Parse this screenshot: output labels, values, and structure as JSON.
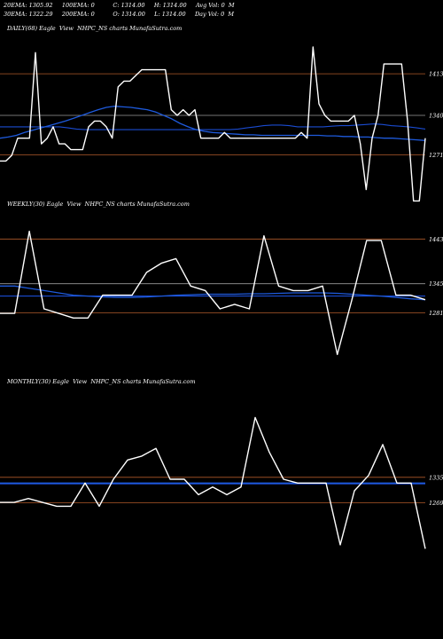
{
  "header": {
    "line1": "20EMA: 1305.92     100EMA: 0          C: 1314.00     H: 1314.00     Avg Vol: 0  M",
    "line2": "30EMA: 1322.29     200EMA: 0          O: 1314.00     L: 1314.00     Day Vol: 0  M"
  },
  "colors": {
    "price": "#ffffff",
    "ema": "#1e5adc",
    "ema_alt": "#1a4bd0",
    "ref": "#b05a2a",
    "gray": "#9a9a9a",
    "pink": "#c87a8a"
  },
  "chart_data": [
    {
      "type": "line",
      "title": "DAILY(68) Eagle  View  NHPC_NS charts MunafaSutra.com",
      "yrange": [
        1200,
        1480
      ],
      "hlines": [
        1413,
        1340,
        1271
      ],
      "tick_labels": [
        "1413",
        "1340",
        "1271"
      ],
      "series": [
        {
          "values": [
            1260,
            1260,
            1270,
            1300,
            1300,
            1300,
            1450,
            1290,
            1300,
            1320,
            1290,
            1290,
            1280,
            1280,
            1280,
            1320,
            1330,
            1330,
            1320,
            1300,
            1390,
            1400,
            1400,
            1410,
            1420,
            1420,
            1420,
            1420,
            1420,
            1350,
            1340,
            1350,
            1340,
            1350,
            1300,
            1300,
            1300,
            1300,
            1310,
            1300,
            1300,
            1300,
            1300,
            1300,
            1300,
            1300,
            1300,
            1300,
            1300,
            1300,
            1300,
            1310,
            1300,
            1460,
            1360,
            1340,
            1330,
            1330,
            1330,
            1330,
            1340,
            1290,
            1210,
            1300,
            1340,
            1430,
            1430,
            1430,
            1430,
            1330,
            1190,
            1190,
            1300
          ]
        },
        {
          "values": [
            1300,
            1302,
            1305,
            1310,
            1314,
            1318,
            1322,
            1326,
            1330,
            1335,
            1340,
            1345,
            1350,
            1354,
            1356,
            1355,
            1354,
            1352,
            1350,
            1346,
            1340,
            1334,
            1326,
            1320,
            1315,
            1312,
            1310,
            1309,
            1308,
            1307,
            1306,
            1306,
            1305,
            1305,
            1305,
            1305,
            1305,
            1305,
            1305,
            1305,
            1304,
            1304,
            1303,
            1303,
            1302,
            1302,
            1301,
            1300,
            1300,
            1299,
            1298,
            1297,
            1296
          ]
        },
        {
          "values": [
            1320,
            1320,
            1320,
            1320,
            1320,
            1320,
            1320,
            1320,
            1318,
            1316,
            1315,
            1315,
            1315,
            1315,
            1315,
            1315,
            1315,
            1315,
            1315,
            1315,
            1315,
            1315,
            1315,
            1315,
            1315,
            1315,
            1315,
            1315,
            1316,
            1318,
            1320,
            1322,
            1323,
            1323,
            1322,
            1320,
            1320,
            1320,
            1320,
            1321,
            1322,
            1322,
            1323,
            1324,
            1325,
            1324,
            1322,
            1321,
            1320,
            1318,
            1316
          ]
        }
      ]
    },
    {
      "type": "line",
      "title": "WEEKLY(30) Eagle  View  NHPC_NS charts MunafaSutra.com",
      "yrange": [
        1150,
        1500
      ],
      "hlines": [
        1443,
        1345,
        1281
      ],
      "tick_labels": [
        "1443",
        "1345",
        "1281"
      ],
      "series": [
        {
          "values": [
            1280,
            1280,
            1460,
            1290,
            1280,
            1270,
            1270,
            1320,
            1320,
            1320,
            1370,
            1390,
            1400,
            1340,
            1330,
            1290,
            1300,
            1290,
            1450,
            1340,
            1330,
            1330,
            1340,
            1190,
            1310,
            1440,
            1440,
            1320,
            1320,
            1310
          ]
        },
        {
          "values": [
            1340,
            1340,
            1335,
            1330,
            1325,
            1320,
            1318,
            1316,
            1315,
            1315,
            1316,
            1318,
            1320,
            1321,
            1322,
            1322,
            1322,
            1323,
            1323,
            1324,
            1325,
            1325,
            1325,
            1324,
            1322,
            1320,
            1318,
            1315,
            1312,
            1310
          ]
        },
        {
          "values": [
            1318,
            1318,
            1318,
            1318,
            1318,
            1318,
            1318,
            1318,
            1318,
            1318,
            1318,
            1318,
            1318,
            1318,
            1318,
            1318,
            1318,
            1318,
            1318,
            1318,
            1318,
            1318,
            1318,
            1318,
            1318,
            1318,
            1318,
            1318,
            1318,
            1318
          ]
        }
      ]
    },
    {
      "type": "line",
      "title": "MONTHLY(30) Eagle  View  NHPC_NS charts MunafaSutra.com",
      "yrange": [
        1100,
        1560
      ],
      "hlines": [
        1335,
        1269
      ],
      "tick_labels": [
        "1335",
        "1269"
      ],
      "series": [
        {
          "values": [
            1270,
            1270,
            1280,
            1270,
            1260,
            1260,
            1320,
            1260,
            1330,
            1380,
            1390,
            1410,
            1330,
            1330,
            1290,
            1310,
            1290,
            1310,
            1490,
            1400,
            1330,
            1320,
            1320,
            1320,
            1160,
            1300,
            1340,
            1420,
            1320,
            1320,
            1150
          ]
        },
        {
          "values": [
            1320,
            1320,
            1320,
            1320,
            1320,
            1320,
            1320,
            1320,
            1320,
            1320,
            1320,
            1320,
            1320,
            1320,
            1320,
            1320,
            1320,
            1320,
            1320,
            1320,
            1320,
            1320,
            1320,
            1320,
            1320,
            1320,
            1320,
            1320,
            1320,
            1320,
            1320
          ]
        },
        {
          "values": [
            1318,
            1318,
            1318,
            1318,
            1318,
            1318,
            1318,
            1318,
            1318,
            1318,
            1318,
            1318,
            1318,
            1318,
            1318,
            1318,
            1318,
            1318,
            1318,
            1318,
            1318,
            1318,
            1318,
            1318,
            1318,
            1318,
            1318,
            1318,
            1318,
            1318,
            1318
          ]
        }
      ]
    }
  ]
}
